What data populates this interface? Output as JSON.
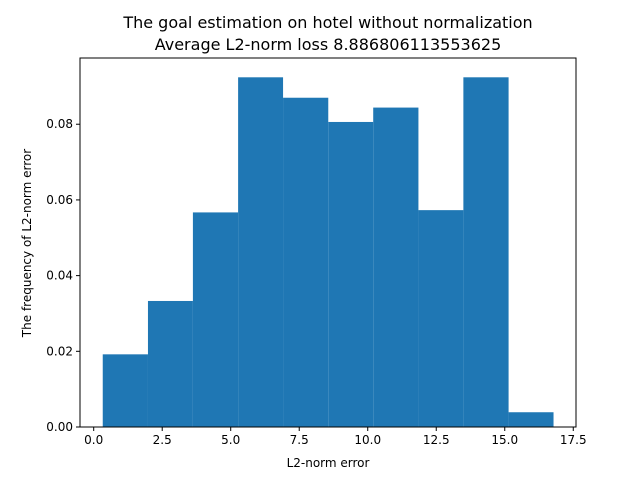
{
  "chart_data": {
    "type": "bar",
    "title_line1": "The goal estimation on hotel without normalization",
    "title_line2": "Average L2-norm loss 8.886806113553625",
    "xlabel": "L2-norm error",
    "ylabel": "The frequency of L2-norm error",
    "xlim": [
      -0.5,
      17.6
    ],
    "ylim": [
      0,
      0.0975
    ],
    "xticks": [
      0.0,
      2.5,
      5.0,
      7.5,
      10.0,
      12.5,
      15.0,
      17.5
    ],
    "xtick_labels": [
      "0.0",
      "2.5",
      "5.0",
      "7.5",
      "10.0",
      "12.5",
      "15.0",
      "17.5"
    ],
    "yticks": [
      0.0,
      0.02,
      0.04,
      0.06,
      0.08
    ],
    "ytick_labels": [
      "0.00",
      "0.02",
      "0.04",
      "0.06",
      "0.08"
    ],
    "bin_edges": [
      0.33,
      1.98,
      3.62,
      5.27,
      6.91,
      8.56,
      10.2,
      11.85,
      13.49,
      15.14,
      16.78
    ],
    "values": [
      0.0192,
      0.0333,
      0.0567,
      0.0924,
      0.087,
      0.0806,
      0.0844,
      0.0573,
      0.0924,
      0.0039
    ],
    "bar_color": "#1f77b4",
    "grid": false,
    "legend": false
  }
}
